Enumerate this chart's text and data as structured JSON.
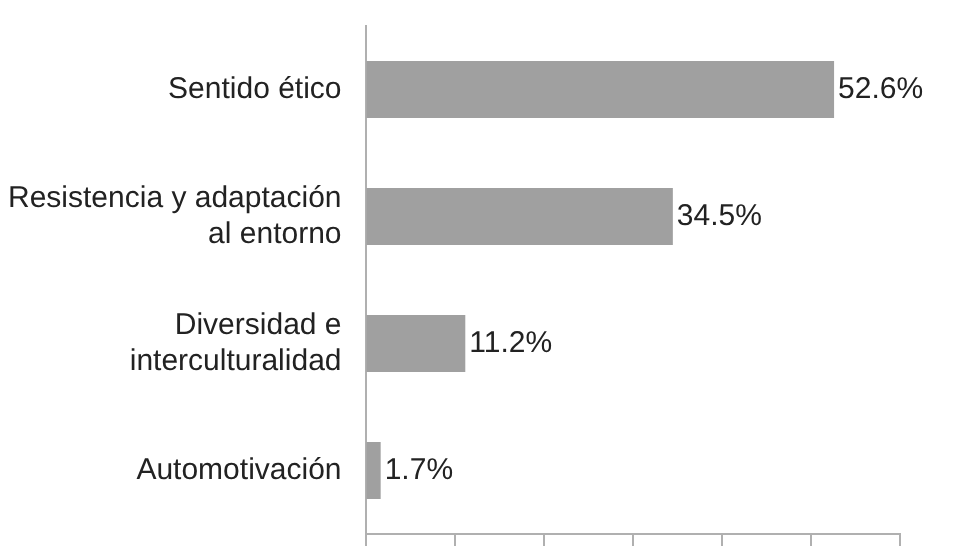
{
  "chart_data": {
    "type": "bar",
    "orientation": "horizontal",
    "categories": [
      "Sentido ético",
      "Resistencia y adaptación al entorno",
      "Diversidad e interculturalidad",
      "Automotivación"
    ],
    "values": [
      52.6,
      34.5,
      11.2,
      1.7
    ],
    "color": "#a0a0a0",
    "value_labels": [
      "52.6%",
      "34.5%",
      "11.2%",
      "1.7%"
    ],
    "xlim": [
      0,
      60
    ],
    "xticks": [
      {
        "value": 0,
        "label": null
      },
      {
        "value": 10,
        "label": null
      },
      {
        "value": 20,
        "label": null
      },
      {
        "value": 30,
        "label": null
      },
      {
        "value": 40,
        "label": null
      },
      {
        "value": 50,
        "label": null
      },
      {
        "value": 60,
        "label": null
      }
    ],
    "tick_labels": "y",
    "grid": false,
    "legend": false
  }
}
